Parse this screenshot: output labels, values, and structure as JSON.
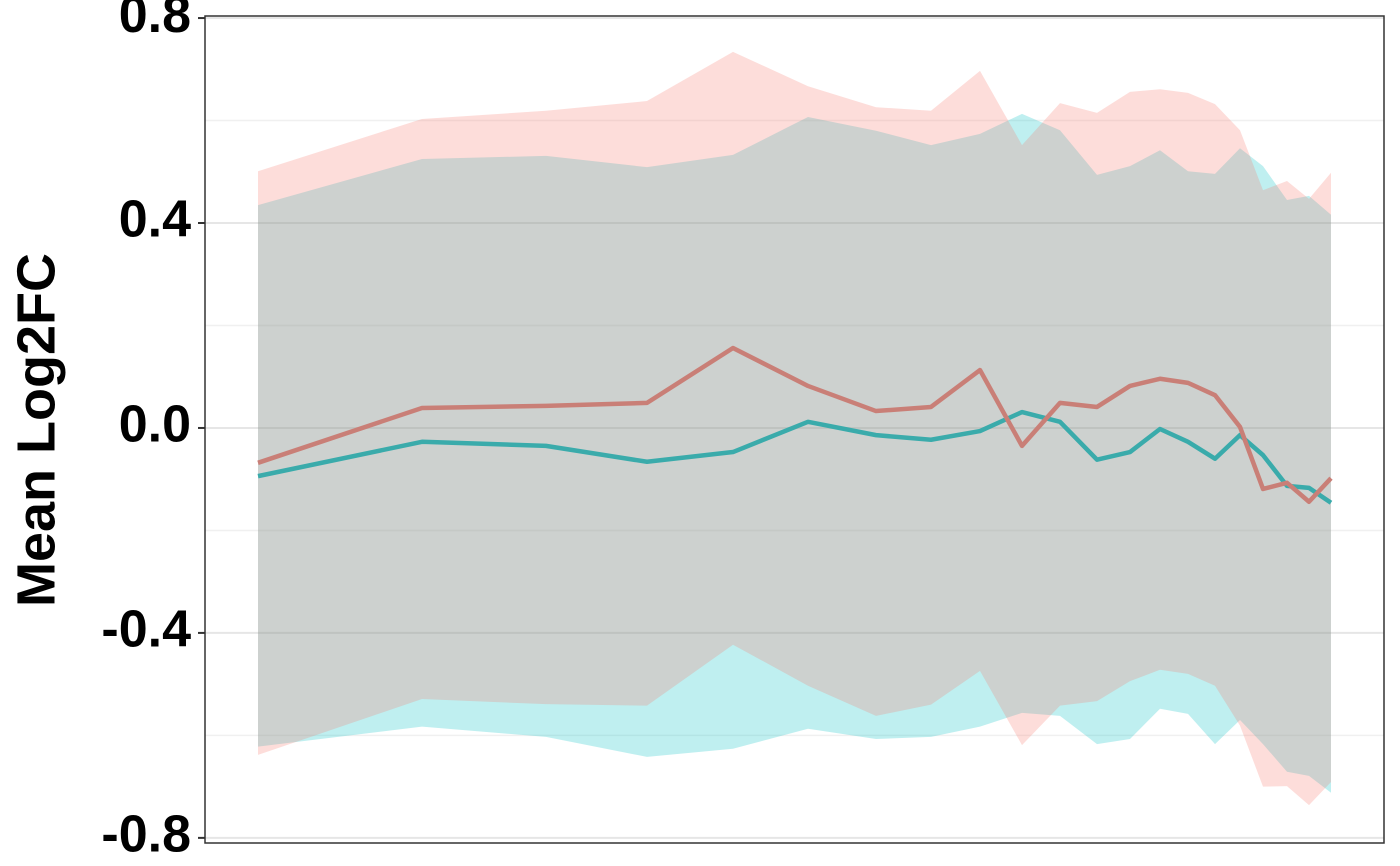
{
  "chart_data": {
    "type": "line",
    "y_label": "Mean Log2FC",
    "x": [
      53,
      217,
      341,
      442,
      528,
      603,
      671,
      726,
      775,
      817,
      855,
      892,
      925,
      955,
      983,
      1010,
      1035,
      1058,
      1082,
      1104,
      1126
    ],
    "xlim": [
      0,
      1179
    ],
    "ylim": [
      -0.81,
      0.804
    ],
    "yticks": [
      -0.8,
      -0.4,
      {
        "value": 0,
        "label": "0.0"
      },
      0.4,
      0.8
    ],
    "grid": true,
    "series": [
      {
        "color": "#00bfc4",
        "line_color": "#3aabab",
        "values": [
          -0.094,
          -0.027,
          -0.035,
          -0.066,
          -0.047,
          0.012,
          -0.014,
          -0.023,
          -0.006,
          0.031,
          0.012,
          -0.062,
          -0.047,
          -0.002,
          -0.027,
          -0.06,
          -0.014,
          -0.053,
          -0.113,
          -0.117,
          -0.146
        ],
        "upper": [
          0.435,
          0.525,
          0.531,
          0.509,
          0.533,
          0.607,
          0.58,
          0.552,
          0.574,
          0.613,
          0.581,
          0.494,
          0.511,
          0.542,
          0.501,
          0.496,
          0.546,
          0.511,
          0.445,
          0.453,
          0.416
        ],
        "lower": [
          -0.622,
          -0.583,
          -0.603,
          -0.642,
          -0.626,
          -0.587,
          -0.607,
          -0.603,
          -0.583,
          -0.556,
          -0.562,
          -0.617,
          -0.607,
          -0.548,
          -0.558,
          -0.617,
          -0.57,
          -0.617,
          -0.671,
          -0.679,
          -0.712
        ]
      },
      {
        "color": "#f8766d",
        "line_color": "#c97f77",
        "values": [
          -0.068,
          0.039,
          0.043,
          0.049,
          0.156,
          0.082,
          0.033,
          0.041,
          0.113,
          -0.035,
          0.049,
          0.041,
          0.082,
          0.096,
          0.088,
          0.064,
          0.002,
          -0.119,
          -0.107,
          -0.144,
          -0.098
        ],
        "upper": [
          0.501,
          0.603,
          0.619,
          0.638,
          0.734,
          0.667,
          0.626,
          0.619,
          0.697,
          0.552,
          0.634,
          0.615,
          0.656,
          0.661,
          0.654,
          0.632,
          0.581,
          0.464,
          0.482,
          0.447,
          0.498
        ],
        "lower": [
          -0.638,
          -0.529,
          -0.539,
          -0.542,
          -0.423,
          -0.503,
          -0.562,
          -0.54,
          -0.474,
          -0.619,
          -0.542,
          -0.533,
          -0.494,
          -0.472,
          -0.48,
          -0.503,
          -0.581,
          -0.7,
          -0.699,
          -0.736,
          -0.691
        ]
      }
    ]
  }
}
